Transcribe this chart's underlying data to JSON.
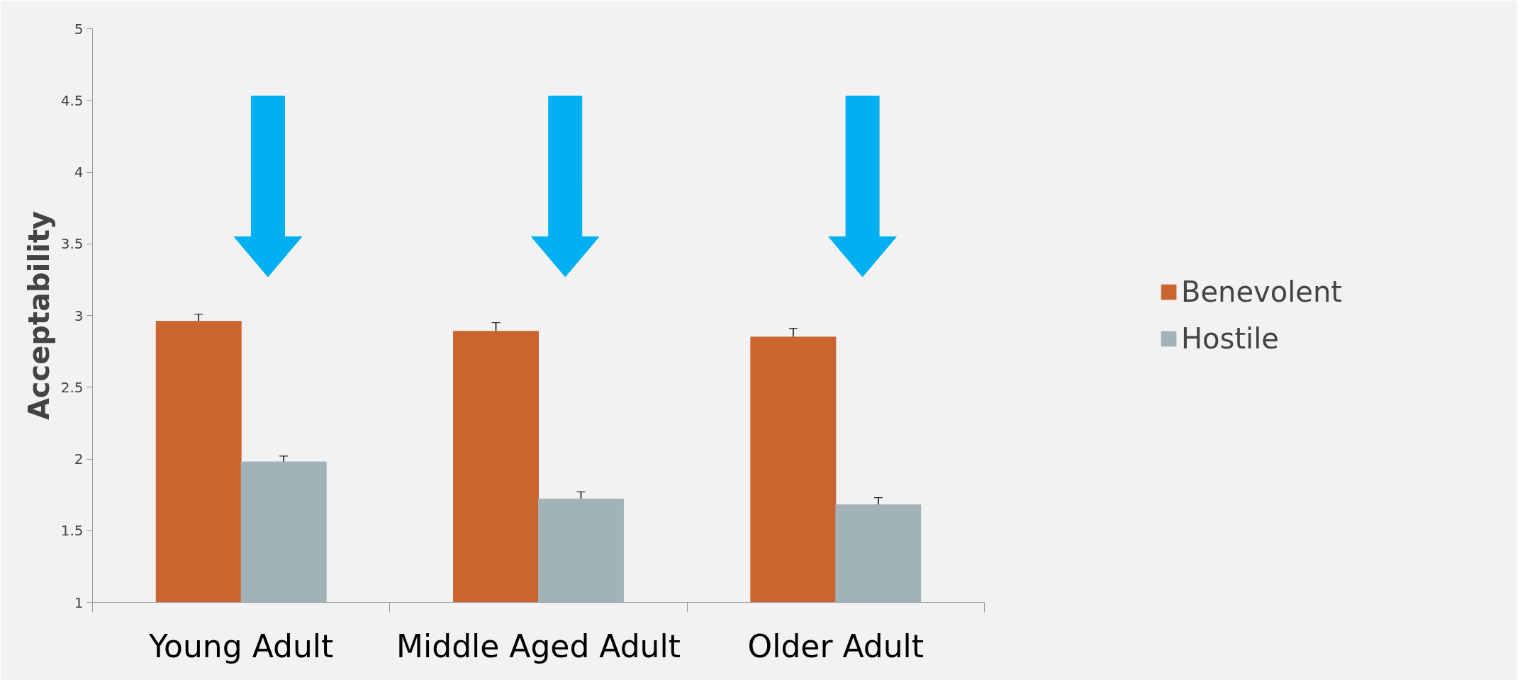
{
  "chart_data": {
    "type": "bar",
    "ylabel": "Acceptability",
    "categories": [
      "Young Adult",
      "Middle Aged Adult",
      "Older Adult"
    ],
    "series": [
      {
        "name": "Benevolent",
        "color": "#cb6530",
        "values": [
          2.96,
          2.89,
          2.85
        ],
        "errors": [
          0.05,
          0.06,
          0.06
        ]
      },
      {
        "name": "Hostile",
        "color": "#a2b3b8",
        "values": [
          1.98,
          1.72,
          1.68
        ],
        "errors": [
          0.04,
          0.05,
          0.05
        ]
      }
    ],
    "ylim": [
      1,
      5
    ],
    "yticks": [
      1,
      1.5,
      2,
      2.5,
      3,
      3.5,
      4,
      4.5,
      5
    ],
    "grid": false,
    "legend": "right"
  }
}
